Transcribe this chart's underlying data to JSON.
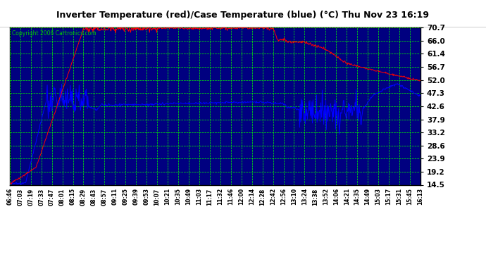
{
  "title": "Inverter Temperature (red)/Case Temperature (blue) (°C) Thu Nov 23 16:19",
  "copyright": "Copyright 2006 Cartronics.com",
  "plot_bg_color": "#000080",
  "fig_bg_color": "#ffffff",
  "grid_color": "#00ff00",
  "red_color": "#ff0000",
  "blue_color": "#0000ff",
  "y_ticks": [
    14.5,
    19.2,
    23.9,
    28.6,
    33.2,
    37.9,
    42.6,
    47.3,
    52.0,
    56.7,
    61.4,
    66.0,
    70.7
  ],
  "x_labels": [
    "06:46",
    "07:03",
    "07:19",
    "07:33",
    "07:47",
    "08:01",
    "08:15",
    "08:29",
    "08:43",
    "08:57",
    "09:11",
    "09:25",
    "09:39",
    "09:53",
    "10:07",
    "10:21",
    "10:35",
    "10:49",
    "11:03",
    "11:17",
    "11:32",
    "11:46",
    "12:00",
    "12:14",
    "12:28",
    "12:42",
    "12:56",
    "13:10",
    "13:24",
    "13:38",
    "13:52",
    "14:06",
    "14:21",
    "14:35",
    "14:49",
    "15:03",
    "15:17",
    "15:31",
    "15:45",
    "16:13"
  ],
  "ylim_min": 14.5,
  "ylim_max": 70.7,
  "n_points": 800
}
